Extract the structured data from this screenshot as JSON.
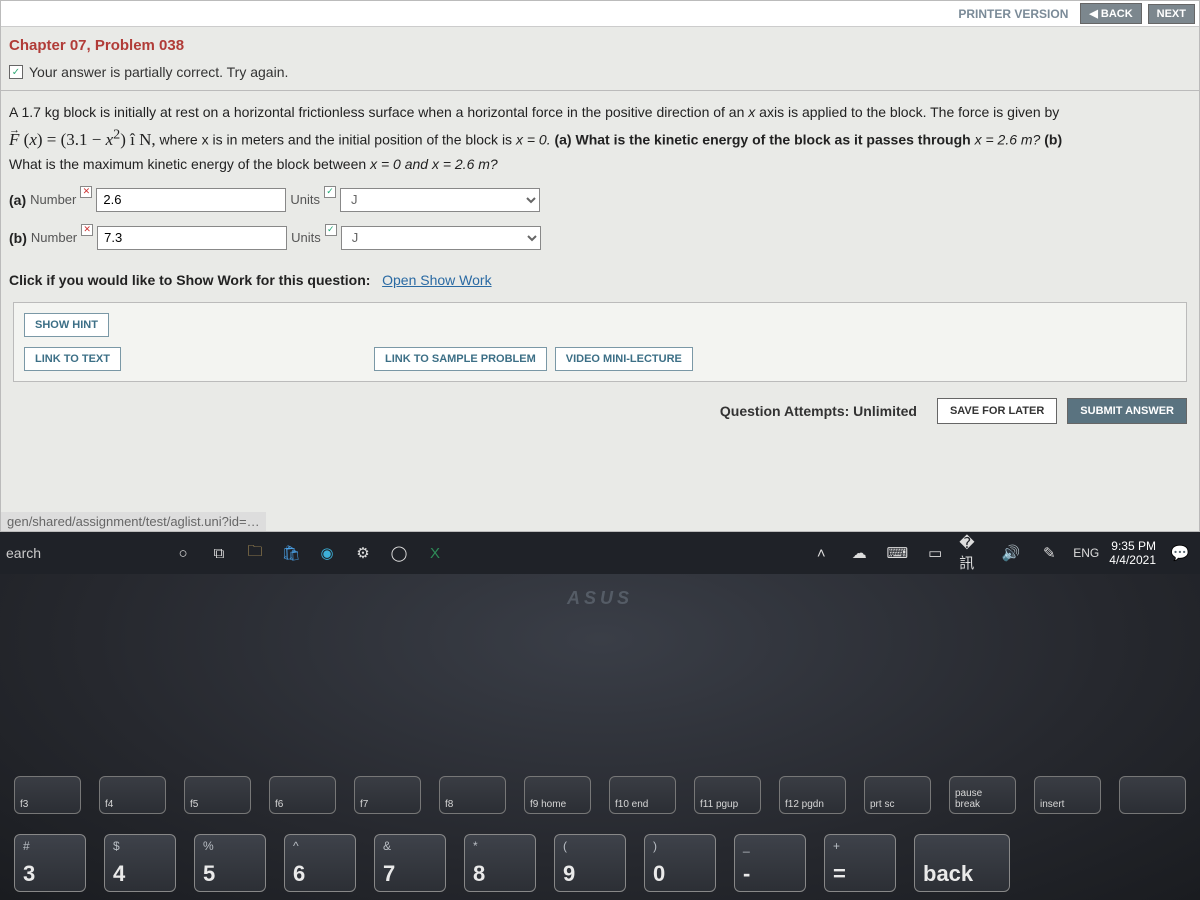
{
  "top": {
    "printer": "PRINTER VERSION",
    "back": "◀ BACK",
    "next": "NEXT"
  },
  "chapter": "Chapter 07, Problem 038",
  "feedback": "Your answer is partially correct.  Try again.",
  "problem": {
    "line1a": "A 1.7 kg block is initially at rest on a horizontal frictionless surface when a horizontal force in the positive direction of an ",
    "line1b": " axis is applied to the block. The force is given by",
    "formula": "F (x) = (3.1 − x²) î N,",
    "line2a": " where x is in meters and the initial position of the block is ",
    "line2b": "x = 0. ",
    "qa": "(a) What is the kinetic energy of the block as it passes through ",
    "qax": "x = 2.6 m? ",
    "qb": "(b)",
    "line3a": "What is the maximum kinetic energy of the block between ",
    "line3b": "x = 0 and x = 2.6 m?"
  },
  "answers": {
    "a": {
      "label": "(a)",
      "sub": "Number",
      "value": "2.6",
      "units_label": "Units",
      "units_value": "J"
    },
    "b": {
      "label": "(b)",
      "sub": "Number",
      "value": "7.3",
      "units_label": "Units",
      "units_value": "J"
    }
  },
  "show_work": {
    "prefix": "Click if you would like to Show Work for this question:",
    "link": "Open Show Work"
  },
  "buttons": {
    "show_hint": "SHOW HINT",
    "link_text": "LINK TO TEXT",
    "sample": "LINK TO SAMPLE PROBLEM",
    "video": "VIDEO MINI-LECTURE"
  },
  "footer": {
    "attempts": "Question Attempts: Unlimited",
    "save": "SAVE FOR LATER",
    "submit": "SUBMIT ANSWER"
  },
  "url": "gen/shared/assignment/test/aglist.uni?id=…",
  "taskbar": {
    "search": "earch",
    "lang": "ENG",
    "time": "9:35 PM",
    "date": "4/4/2021"
  },
  "keyboard": {
    "fn": [
      "f3",
      "f4",
      "f5",
      "f6",
      "f7",
      "f8",
      "f9 home",
      "f10 end",
      "f11 pgup",
      "f12 pgdn",
      "prt sc",
      "pause break",
      "insert",
      ""
    ],
    "num": [
      {
        "sym": "#",
        "digit": "3"
      },
      {
        "sym": "$",
        "digit": "4"
      },
      {
        "sym": "%",
        "digit": "5"
      },
      {
        "sym": "^",
        "digit": "6"
      },
      {
        "sym": "&",
        "digit": "7"
      },
      {
        "sym": "*",
        "digit": "8"
      },
      {
        "sym": "(",
        "digit": "9"
      },
      {
        "sym": ")",
        "digit": "0"
      },
      {
        "sym": "_",
        "digit": "-"
      },
      {
        "sym": "+",
        "digit": "="
      },
      {
        "sym": "",
        "digit": "back"
      }
    ],
    "brand": "ASUS"
  }
}
